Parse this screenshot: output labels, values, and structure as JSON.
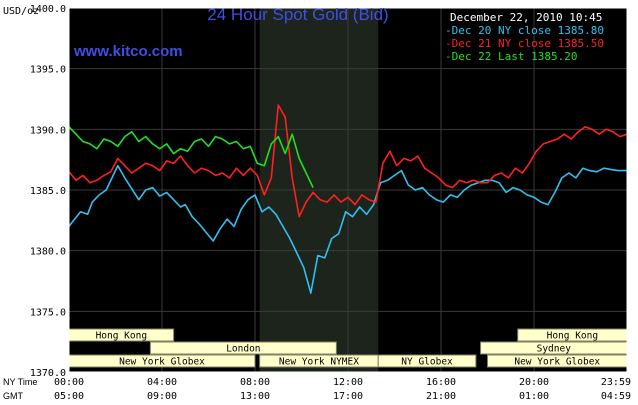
{
  "chart_data": {
    "type": "line",
    "title": "24 Hour Spot Gold (Bid)",
    "watermark": "www.kitco.com",
    "date_label": "December 22, 2010 10:45",
    "ylabel": "USD/oz",
    "ylim": [
      1370,
      1400
    ],
    "yticks": [
      "1400.0",
      "1395.0",
      "1390.0",
      "1385.0",
      "1380.0",
      "1375.0",
      "1370.0"
    ],
    "ytick_values": [
      1400,
      1395,
      1390,
      1385,
      1380,
      1375,
      1370
    ],
    "xlim": [
      0,
      24
    ],
    "grid": true,
    "legend_placement": "top-right",
    "time_rows": [
      {
        "label": "NY Time",
        "ticks": [
          "00:00",
          "04:00",
          "08:00",
          "12:00",
          "16:00",
          "20:00",
          "23:59"
        ]
      },
      {
        "label": "GMT",
        "ticks": [
          "05:00",
          "09:00",
          "13:00",
          "17:00",
          "21:00",
          "01:00",
          "04:59"
        ]
      }
    ],
    "tick_hours": [
      0,
      4,
      8,
      12,
      16,
      20,
      24
    ],
    "shaded_period": [
      8.2,
      13.3
    ],
    "markets": [
      {
        "name": "Hong Kong",
        "start": 0,
        "end": 4.5,
        "row": 0
      },
      {
        "name": "Hong Kong",
        "start": 19.3,
        "end": 24,
        "row": 0
      },
      {
        "name": "London",
        "start": 3.5,
        "end": 11.5,
        "row": 1
      },
      {
        "name": "Sydney",
        "start": 17.7,
        "end": 24,
        "row": 1
      },
      {
        "name": "New York Globex",
        "start": 0,
        "end": 8.0,
        "row": 2
      },
      {
        "name": "New York NYMEX",
        "start": 8.2,
        "end": 13.3,
        "row": 2
      },
      {
        "name": "NY Globex",
        "start": 13.3,
        "end": 17.5,
        "row": 2
      },
      {
        "name": "New York Globex",
        "start": 18.0,
        "end": 24,
        "row": 2
      }
    ],
    "colors": {
      "background": "#000000",
      "plot_border": "#ffffff",
      "grid": "#3a3a3a",
      "shade": "#1c241c",
      "title": "#3f4fe6",
      "watermark": "#3f4fe6",
      "axis_text": "#000000",
      "market_box": "#ffffcc",
      "market_text": "#000000"
    },
    "series": [
      {
        "name": "Dec 20 NY close",
        "legend": "Dec 20 NY close 1385.80",
        "color": "#30c0f0",
        "x": [
          0,
          0.2,
          0.5,
          0.8,
          1.0,
          1.3,
          1.6,
          1.9,
          2.1,
          2.4,
          2.6,
          2.8,
          3.0,
          3.3,
          3.6,
          3.9,
          4.2,
          4.5,
          4.8,
          5.0,
          5.3,
          5.6,
          5.9,
          6.2,
          6.5,
          6.8,
          7.1,
          7.4,
          7.7,
          8.0,
          8.3,
          8.6,
          8.9,
          9.2,
          9.5,
          9.8,
          10.1,
          10.4,
          10.7,
          11.0,
          11.3,
          11.6,
          11.9,
          12.2,
          12.5,
          12.8,
          13.1,
          13.4,
          13.7,
          14.0,
          14.3,
          14.6,
          14.9,
          15.2,
          15.5,
          15.8,
          16.1,
          16.4,
          16.7,
          17.0,
          17.3,
          17.6,
          17.9,
          18.2,
          18.5,
          18.8,
          19.1,
          19.4,
          19.7,
          20.0,
          20.3,
          20.6,
          20.9,
          21.2,
          21.5,
          21.8,
          22.1,
          22.4,
          22.7,
          23.0,
          23.3,
          23.6,
          23.99
        ],
        "values": [
          1382.0,
          1382.5,
          1383.2,
          1383.0,
          1384.0,
          1384.6,
          1385.0,
          1386.2,
          1387.0,
          1386.0,
          1385.4,
          1384.8,
          1384.2,
          1385.0,
          1385.2,
          1384.5,
          1384.8,
          1384.2,
          1383.6,
          1383.8,
          1382.8,
          1382.2,
          1381.5,
          1380.8,
          1381.8,
          1382.6,
          1382.0,
          1383.4,
          1384.2,
          1384.6,
          1383.2,
          1383.6,
          1383.0,
          1382.0,
          1381.0,
          1379.8,
          1378.6,
          1376.5,
          1379.6,
          1379.4,
          1381.0,
          1381.4,
          1383.2,
          1382.8,
          1383.6,
          1383.0,
          1383.8,
          1385.6,
          1385.8,
          1386.2,
          1386.6,
          1385.4,
          1385.0,
          1385.2,
          1384.6,
          1384.2,
          1384.0,
          1384.6,
          1384.4,
          1385.0,
          1385.4,
          1385.6,
          1385.8,
          1385.8,
          1385.6,
          1384.8,
          1385.2,
          1385.0,
          1384.6,
          1384.4,
          1384.0,
          1383.8,
          1384.8,
          1386.0,
          1386.4,
          1386.0,
          1386.8,
          1386.6,
          1386.5,
          1386.8,
          1386.7,
          1386.6,
          1386.6
        ]
      },
      {
        "name": "Dec 21 NY close",
        "legend": "Dec 21 NY close 1385.50",
        "color": "#ff2020",
        "x": [
          0,
          0.3,
          0.6,
          0.9,
          1.2,
          1.5,
          1.8,
          2.1,
          2.4,
          2.7,
          3.0,
          3.3,
          3.6,
          3.9,
          4.2,
          4.5,
          4.8,
          5.1,
          5.4,
          5.7,
          6.0,
          6.3,
          6.6,
          6.9,
          7.2,
          7.5,
          7.8,
          8.1,
          8.4,
          8.7,
          9.0,
          9.3,
          9.6,
          9.9,
          10.2,
          10.5,
          10.8,
          11.1,
          11.4,
          11.7,
          12.0,
          12.3,
          12.6,
          12.9,
          13.2,
          13.5,
          13.8,
          14.1,
          14.4,
          14.7,
          15.0,
          15.3,
          15.6,
          15.9,
          16.2,
          16.5,
          16.8,
          17.1,
          17.4,
          17.7,
          18.0,
          18.3,
          18.6,
          18.9,
          19.2,
          19.5,
          19.8,
          20.1,
          20.4,
          20.7,
          21.0,
          21.3,
          21.6,
          21.9,
          22.2,
          22.5,
          22.8,
          23.1,
          23.4,
          23.7,
          23.99
        ],
        "values": [
          1386.5,
          1385.8,
          1386.2,
          1385.6,
          1385.8,
          1386.2,
          1386.5,
          1387.6,
          1387.0,
          1386.4,
          1386.8,
          1387.2,
          1387.0,
          1386.6,
          1387.4,
          1387.2,
          1387.8,
          1387.0,
          1386.4,
          1386.8,
          1386.6,
          1386.2,
          1386.4,
          1386.0,
          1386.8,
          1386.2,
          1386.8,
          1386.2,
          1384.6,
          1386.0,
          1392.0,
          1391.0,
          1386.0,
          1382.8,
          1384.0,
          1384.8,
          1384.2,
          1384.0,
          1384.6,
          1384.0,
          1384.4,
          1383.8,
          1384.6,
          1384.2,
          1384.0,
          1387.2,
          1388.2,
          1387.0,
          1387.6,
          1387.4,
          1387.8,
          1386.8,
          1386.4,
          1386.0,
          1385.4,
          1385.2,
          1385.8,
          1385.6,
          1385.8,
          1385.6,
          1385.6,
          1386.2,
          1386.4,
          1386.0,
          1386.8,
          1386.4,
          1387.2,
          1388.2,
          1388.8,
          1389.0,
          1389.2,
          1389.6,
          1389.2,
          1389.8,
          1390.2,
          1390.0,
          1389.6,
          1390.0,
          1389.8,
          1389.4,
          1389.6
        ]
      },
      {
        "name": "Dec 22 Last",
        "legend": "Dec 22 Last 1385.20",
        "color": "#20e020",
        "x": [
          0,
          0.3,
          0.6,
          0.9,
          1.2,
          1.5,
          1.8,
          2.1,
          2.4,
          2.7,
          3.0,
          3.3,
          3.6,
          3.9,
          4.2,
          4.5,
          4.8,
          5.1,
          5.4,
          5.7,
          6.0,
          6.3,
          6.6,
          6.9,
          7.2,
          7.5,
          7.8,
          8.1,
          8.4,
          8.7,
          9.0,
          9.3,
          9.6,
          9.9,
          10.2,
          10.5
        ],
        "values": [
          1390.2,
          1389.6,
          1389.0,
          1388.8,
          1388.4,
          1389.2,
          1389.0,
          1388.6,
          1389.4,
          1389.8,
          1389.0,
          1389.4,
          1388.8,
          1388.4,
          1388.8,
          1388.0,
          1388.4,
          1388.2,
          1389.0,
          1389.2,
          1388.6,
          1389.4,
          1389.2,
          1388.8,
          1389.0,
          1388.4,
          1388.6,
          1387.2,
          1387.0,
          1388.8,
          1389.4,
          1388.0,
          1389.6,
          1387.6,
          1386.4,
          1385.2
        ]
      }
    ]
  }
}
